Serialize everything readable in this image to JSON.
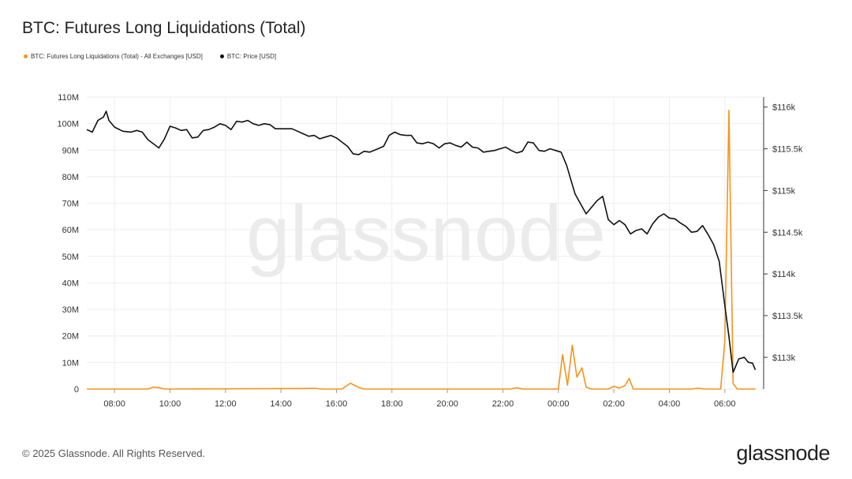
{
  "title": "BTC: Futures Long Liquidations (Total)",
  "legend": {
    "liq": "BTC: Futures Long Liquidations (Total) - All Exchanges [USD]",
    "price": "BTC: Price [USD]"
  },
  "watermark": "glassnode",
  "footer": "© 2025 Glassnode. All Rights Reserved.",
  "brand": "glassnode",
  "colors": {
    "liq": "#f7931a",
    "price": "#111111",
    "grid": "#eeeeee",
    "axis": "#333333"
  },
  "chart_data": {
    "type": "line",
    "title": "BTC: Futures Long Liquidations (Total)",
    "x_hours_range": [
      7.0,
      31.4
    ],
    "x_ticks": [
      {
        "h": 8,
        "label": "08:00"
      },
      {
        "h": 10,
        "label": "10:00"
      },
      {
        "h": 12,
        "label": "12:00"
      },
      {
        "h": 14,
        "label": "14:00"
      },
      {
        "h": 16,
        "label": "16:00"
      },
      {
        "h": 18,
        "label": "18:00"
      },
      {
        "h": 20,
        "label": "20:00"
      },
      {
        "h": 22,
        "label": "22:00"
      },
      {
        "h": 24,
        "label": "00:00"
      },
      {
        "h": 26,
        "label": "02:00"
      },
      {
        "h": 28,
        "label": "04:00"
      },
      {
        "h": 30,
        "label": "06:00"
      }
    ],
    "y_left": {
      "range": [
        0,
        110000000
      ],
      "ticks": [
        {
          "v": 0,
          "label": "0"
        },
        {
          "v": 10000000,
          "label": "10M"
        },
        {
          "v": 20000000,
          "label": "20M"
        },
        {
          "v": 30000000,
          "label": "30M"
        },
        {
          "v": 40000000,
          "label": "40M"
        },
        {
          "v": 50000000,
          "label": "50M"
        },
        {
          "v": 60000000,
          "label": "60M"
        },
        {
          "v": 70000000,
          "label": "70M"
        },
        {
          "v": 80000000,
          "label": "80M"
        },
        {
          "v": 90000000,
          "label": "90M"
        },
        {
          "v": 100000000,
          "label": "100M"
        },
        {
          "v": 110000000,
          "label": "110M"
        }
      ]
    },
    "y_right": {
      "range": [
        112620,
        116120
      ],
      "ticks": [
        {
          "v": 113000,
          "label": "$113k"
        },
        {
          "v": 113500,
          "label": "$113.5k"
        },
        {
          "v": 114000,
          "label": "$114k"
        },
        {
          "v": 114500,
          "label": "$114.5k"
        },
        {
          "v": 115000,
          "label": "$115k"
        },
        {
          "v": 115500,
          "label": "$115.5k"
        },
        {
          "v": 116000,
          "label": "$116k"
        }
      ]
    },
    "series": [
      {
        "name": "BTC: Futures Long Liquidations (Total) - All Exchanges [USD]",
        "axis": "left",
        "points": [
          [
            7.0,
            0
          ],
          [
            9.2,
            0
          ],
          [
            9.4,
            700000
          ],
          [
            9.6,
            500000
          ],
          [
            9.8,
            0
          ],
          [
            14.9,
            200000
          ],
          [
            15.2,
            300000
          ],
          [
            15.5,
            0
          ],
          [
            16.2,
            0
          ],
          [
            16.5,
            2200000
          ],
          [
            16.8,
            600000
          ],
          [
            17.0,
            0
          ],
          [
            22.3,
            0
          ],
          [
            22.5,
            500000
          ],
          [
            22.7,
            0
          ],
          [
            24.0,
            0
          ],
          [
            24.15,
            13000000
          ],
          [
            24.33,
            1500000
          ],
          [
            24.5,
            16500000
          ],
          [
            24.67,
            4500000
          ],
          [
            24.85,
            8000000
          ],
          [
            25.0,
            700000
          ],
          [
            25.2,
            0
          ],
          [
            25.8,
            0
          ],
          [
            26.0,
            1000000
          ],
          [
            26.2,
            400000
          ],
          [
            26.4,
            1300000
          ],
          [
            26.55,
            4000000
          ],
          [
            26.7,
            0
          ],
          [
            28.8,
            0
          ],
          [
            29.0,
            300000
          ],
          [
            29.3,
            0
          ],
          [
            29.85,
            0
          ],
          [
            30.0,
            18000000
          ],
          [
            30.15,
            105000000
          ],
          [
            30.3,
            2000000
          ],
          [
            30.45,
            0
          ],
          [
            31.1,
            0
          ]
        ]
      },
      {
        "name": "BTC: Price [USD]",
        "axis": "right",
        "points": [
          [
            7.0,
            115730
          ],
          [
            7.2,
            115700
          ],
          [
            7.4,
            115840
          ],
          [
            7.6,
            115880
          ],
          [
            7.7,
            115950
          ],
          [
            7.8,
            115840
          ],
          [
            8.0,
            115760
          ],
          [
            8.3,
            115710
          ],
          [
            8.6,
            115700
          ],
          [
            8.8,
            115720
          ],
          [
            9.0,
            115700
          ],
          [
            9.2,
            115610
          ],
          [
            9.6,
            115510
          ],
          [
            9.8,
            115620
          ],
          [
            10.0,
            115770
          ],
          [
            10.2,
            115750
          ],
          [
            10.4,
            115720
          ],
          [
            10.6,
            115730
          ],
          [
            10.8,
            115630
          ],
          [
            11.0,
            115640
          ],
          [
            11.2,
            115720
          ],
          [
            11.4,
            115730
          ],
          [
            11.6,
            115760
          ],
          [
            11.8,
            115800
          ],
          [
            12.0,
            115780
          ],
          [
            12.2,
            115730
          ],
          [
            12.4,
            115830
          ],
          [
            12.6,
            115820
          ],
          [
            12.8,
            115840
          ],
          [
            13.0,
            115800
          ],
          [
            13.2,
            115780
          ],
          [
            13.4,
            115800
          ],
          [
            13.6,
            115790
          ],
          [
            13.8,
            115740
          ],
          [
            14.0,
            115740
          ],
          [
            14.2,
            115740
          ],
          [
            14.4,
            115740
          ],
          [
            14.6,
            115710
          ],
          [
            14.8,
            115680
          ],
          [
            15.0,
            115650
          ],
          [
            15.2,
            115660
          ],
          [
            15.4,
            115620
          ],
          [
            15.6,
            115640
          ],
          [
            15.8,
            115660
          ],
          [
            16.0,
            115630
          ],
          [
            16.2,
            115580
          ],
          [
            16.4,
            115530
          ],
          [
            16.6,
            115440
          ],
          [
            16.8,
            115430
          ],
          [
            17.0,
            115470
          ],
          [
            17.2,
            115460
          ],
          [
            17.5,
            115500
          ],
          [
            17.7,
            115530
          ],
          [
            17.9,
            115660
          ],
          [
            18.1,
            115700
          ],
          [
            18.3,
            115670
          ],
          [
            18.5,
            115660
          ],
          [
            18.7,
            115660
          ],
          [
            18.9,
            115570
          ],
          [
            19.1,
            115560
          ],
          [
            19.3,
            115580
          ],
          [
            19.5,
            115560
          ],
          [
            19.7,
            115510
          ],
          [
            19.9,
            115560
          ],
          [
            20.1,
            115570
          ],
          [
            20.3,
            115540
          ],
          [
            20.5,
            115520
          ],
          [
            20.7,
            115580
          ],
          [
            20.9,
            115520
          ],
          [
            21.1,
            115510
          ],
          [
            21.3,
            115460
          ],
          [
            21.5,
            115470
          ],
          [
            21.7,
            115480
          ],
          [
            21.9,
            115500
          ],
          [
            22.1,
            115520
          ],
          [
            22.3,
            115480
          ],
          [
            22.5,
            115450
          ],
          [
            22.7,
            115470
          ],
          [
            22.9,
            115580
          ],
          [
            23.1,
            115570
          ],
          [
            23.3,
            115480
          ],
          [
            23.5,
            115470
          ],
          [
            23.7,
            115500
          ],
          [
            23.9,
            115480
          ],
          [
            24.1,
            115460
          ],
          [
            24.3,
            115300
          ],
          [
            24.6,
            114960
          ],
          [
            24.8,
            114840
          ],
          [
            25.0,
            114720
          ],
          [
            25.2,
            114800
          ],
          [
            25.4,
            114880
          ],
          [
            25.6,
            114930
          ],
          [
            25.8,
            114650
          ],
          [
            26.0,
            114590
          ],
          [
            26.2,
            114640
          ],
          [
            26.4,
            114590
          ],
          [
            26.6,
            114480
          ],
          [
            26.8,
            114520
          ],
          [
            27.0,
            114540
          ],
          [
            27.2,
            114480
          ],
          [
            27.4,
            114600
          ],
          [
            27.6,
            114680
          ],
          [
            27.8,
            114720
          ],
          [
            28.0,
            114670
          ],
          [
            28.2,
            114660
          ],
          [
            28.4,
            114610
          ],
          [
            28.6,
            114570
          ],
          [
            28.8,
            114500
          ],
          [
            29.0,
            114510
          ],
          [
            29.2,
            114580
          ],
          [
            29.4,
            114470
          ],
          [
            29.6,
            114350
          ],
          [
            29.8,
            114150
          ],
          [
            30.0,
            113620
          ],
          [
            30.15,
            113250
          ],
          [
            30.3,
            112820
          ],
          [
            30.5,
            112980
          ],
          [
            30.7,
            113000
          ],
          [
            30.85,
            112940
          ],
          [
            31.0,
            112930
          ],
          [
            31.1,
            112850
          ]
        ]
      }
    ]
  }
}
